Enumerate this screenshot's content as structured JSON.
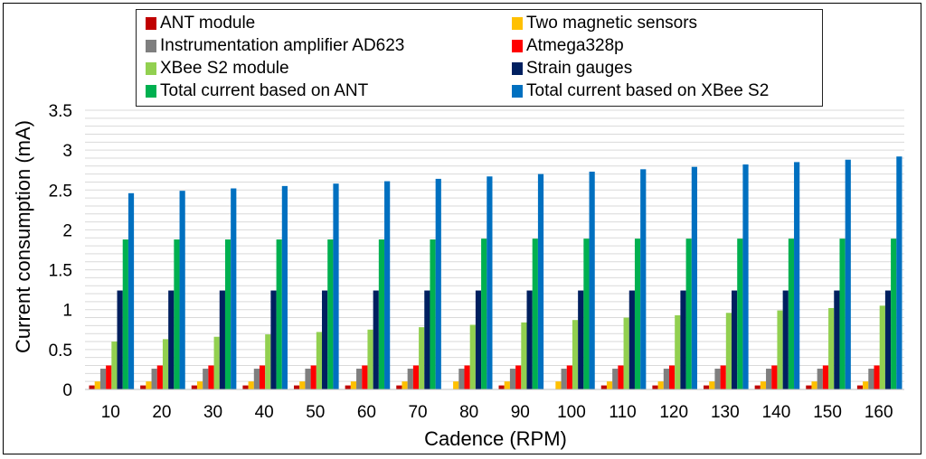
{
  "chart_data": {
    "type": "bar",
    "title": "",
    "xlabel": "Cadence (RPM)",
    "ylabel": "Current consumption (mA)",
    "ylim": [
      0,
      3.5
    ],
    "yticks": [
      "0",
      "0.5",
      "1",
      "1.5",
      "2",
      "2.5",
      "3",
      "3.5"
    ],
    "grid": true,
    "legend_position": "top",
    "categories": [
      "10",
      "20",
      "30",
      "40",
      "50",
      "60",
      "70",
      "80",
      "90",
      "100",
      "110",
      "120",
      "130",
      "140",
      "150",
      "160"
    ],
    "series": [
      {
        "name": "ANT module",
        "color": "#c00000",
        "values": [
          0.05,
          0.05,
          0.05,
          0.05,
          0.05,
          0.05,
          0.05,
          0,
          0.05,
          0,
          0.05,
          0.05,
          0.05,
          0.05,
          0.05,
          0.05
        ]
      },
      {
        "name": "Two magnetic sensors",
        "color": "#ffc000",
        "values": [
          0.1,
          0.1,
          0.1,
          0.1,
          0.1,
          0.1,
          0.1,
          0.1,
          0.1,
          0.1,
          0.1,
          0.1,
          0.1,
          0.1,
          0.1,
          0.1
        ]
      },
      {
        "name": "Instrumentation amplifier AD623",
        "color": "#7f7f7f",
        "values": [
          0.26,
          0.26,
          0.26,
          0.26,
          0.26,
          0.26,
          0.26,
          0.26,
          0.26,
          0.26,
          0.26,
          0.26,
          0.26,
          0.26,
          0.26,
          0.26
        ]
      },
      {
        "name": "Atmega328p",
        "color": "#ff0000",
        "values": [
          0.3,
          0.3,
          0.3,
          0.3,
          0.3,
          0.3,
          0.3,
          0.3,
          0.3,
          0.3,
          0.3,
          0.3,
          0.3,
          0.3,
          0.3,
          0.3
        ]
      },
      {
        "name": "XBee S2 module",
        "color": "#92d050",
        "values": [
          0.6,
          0.63,
          0.66,
          0.69,
          0.72,
          0.75,
          0.78,
          0.81,
          0.84,
          0.87,
          0.9,
          0.93,
          0.96,
          0.99,
          1.02,
          1.05
        ]
      },
      {
        "name": "Strain gauges",
        "color": "#002060",
        "values": [
          1.24,
          1.24,
          1.24,
          1.24,
          1.24,
          1.24,
          1.24,
          1.24,
          1.24,
          1.24,
          1.24,
          1.24,
          1.24,
          1.24,
          1.24,
          1.24
        ]
      },
      {
        "name": "Total current based on ANT",
        "color": "#00b050",
        "values": [
          1.88,
          1.88,
          1.88,
          1.88,
          1.88,
          1.88,
          1.88,
          1.89,
          1.89,
          1.89,
          1.89,
          1.89,
          1.89,
          1.89,
          1.89,
          1.89
        ]
      },
      {
        "name": "Total current based on XBee S2",
        "color": "#0070c0",
        "values": [
          2.46,
          2.49,
          2.52,
          2.55,
          2.58,
          2.61,
          2.64,
          2.67,
          2.7,
          2.73,
          2.76,
          2.79,
          2.82,
          2.85,
          2.88,
          2.92
        ]
      }
    ]
  }
}
